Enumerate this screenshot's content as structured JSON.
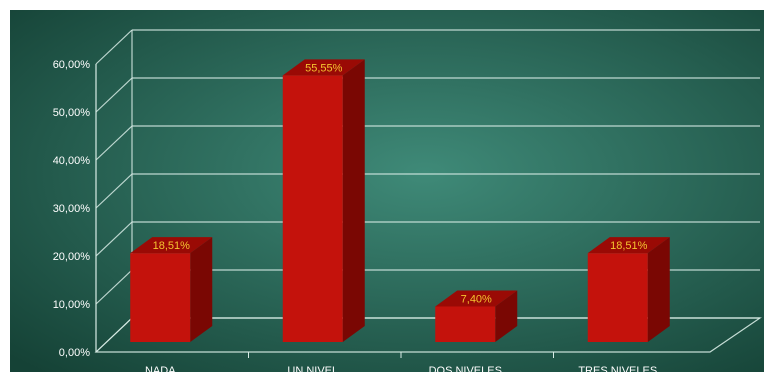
{
  "chart_data": {
    "type": "bar",
    "categories": [
      "NADA",
      "UN NIVEL",
      "DOS NIVELES",
      "TRES NIVELES"
    ],
    "values": [
      18.51,
      55.55,
      7.4,
      18.51
    ],
    "data_labels": [
      "18,51%",
      "55,55%",
      "7,40%",
      "18,51%"
    ],
    "ylim": [
      0,
      60
    ],
    "yticks": [
      0,
      10,
      20,
      30,
      40,
      50,
      60
    ],
    "ytick_labels": [
      "0,00%",
      "10,00%",
      "20,00%",
      "30,00%",
      "40,00%",
      "50,00%",
      "60,00%"
    ],
    "grid": true,
    "style": "3d-column",
    "colors": {
      "bar_front": "#c4120c",
      "bar_side": "#7a0703",
      "bar_top": "#9a0a05",
      "background_center": "#3f8a78",
      "background_edge": "#154236",
      "grid": "#d8ece6",
      "tick_text": "#ffffff",
      "data_label_text": "#f4c430"
    }
  }
}
